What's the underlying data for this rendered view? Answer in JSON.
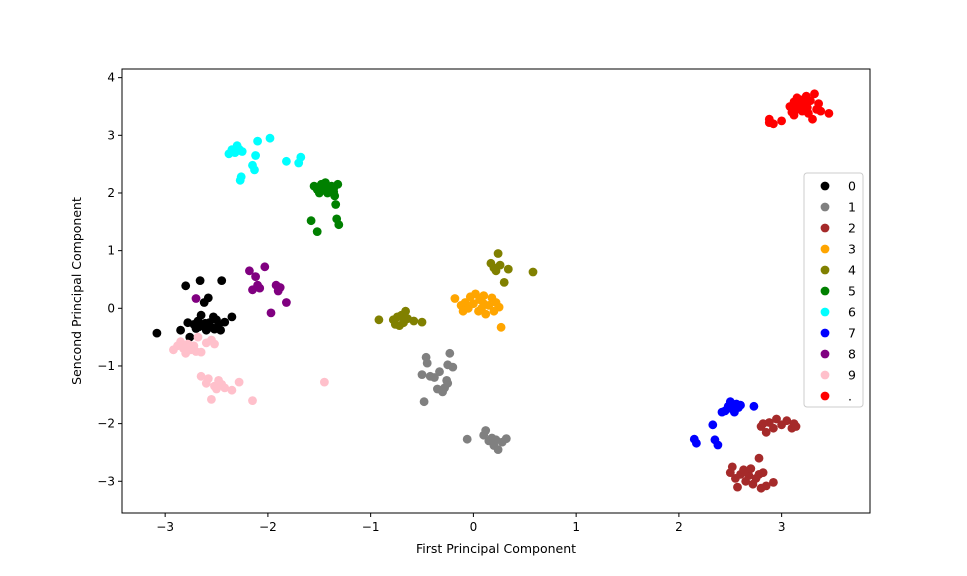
{
  "chart_data": {
    "type": "scatter",
    "title": "",
    "xlabel": "First Principal Component",
    "ylabel": "Sencond Principal Component",
    "xlim": [
      -3.42,
      3.86
    ],
    "ylim": [
      -3.55,
      4.15
    ],
    "xticks": [
      -3,
      -2,
      -1,
      0,
      1,
      2,
      3
    ],
    "yticks": [
      -3,
      -2,
      -1,
      0,
      1,
      2,
      3,
      4
    ],
    "xtick_labels": [
      "−3",
      "−2",
      "−1",
      "0",
      "1",
      "2",
      "3"
    ],
    "ytick_labels": [
      "−3",
      "−2",
      "−1",
      "0",
      "1",
      "2",
      "3",
      "4"
    ],
    "grid": false,
    "legend_position": "center-right",
    "series": [
      {
        "name": "0",
        "color": "#000000",
        "points": [
          [
            -3.08,
            -0.43
          ],
          [
            -2.85,
            -0.38
          ],
          [
            -2.8,
            0.39
          ],
          [
            -2.78,
            -0.25
          ],
          [
            -2.76,
            -0.5
          ],
          [
            -2.72,
            -0.28
          ],
          [
            -2.7,
            -0.35
          ],
          [
            -2.68,
            -0.22
          ],
          [
            -2.66,
            0.48
          ],
          [
            -2.65,
            -0.12
          ],
          [
            -2.63,
            -0.3
          ],
          [
            -2.62,
            0.1
          ],
          [
            -2.6,
            -0.38
          ],
          [
            -2.58,
            0.18
          ],
          [
            -2.57,
            -0.25
          ],
          [
            -2.55,
            -0.33
          ],
          [
            -2.53,
            -0.15
          ],
          [
            -2.5,
            -0.2
          ],
          [
            -2.48,
            -0.28
          ],
          [
            -2.46,
            -0.38
          ],
          [
            -2.45,
            0.48
          ],
          [
            -2.42,
            -0.24
          ],
          [
            -2.35,
            -0.15
          ],
          [
            -2.67,
            -0.32
          ],
          [
            -2.52,
            -0.36
          ],
          [
            -2.61,
            -0.26
          ]
        ]
      },
      {
        "name": "1",
        "color": "#808080",
        "points": [
          [
            -0.48,
            -1.62
          ],
          [
            -0.5,
            -1.15
          ],
          [
            -0.46,
            -0.85
          ],
          [
            -0.45,
            -0.95
          ],
          [
            -0.42,
            -1.18
          ],
          [
            -0.38,
            -1.2
          ],
          [
            -0.35,
            -1.4
          ],
          [
            -0.33,
            -1.1
          ],
          [
            -0.3,
            -1.45
          ],
          [
            -0.28,
            -1.38
          ],
          [
            -0.26,
            -1.25
          ],
          [
            -0.25,
            -0.98
          ],
          [
            -0.23,
            -0.78
          ],
          [
            -0.2,
            -1.02
          ],
          [
            -0.25,
            -1.3
          ],
          [
            -0.06,
            -2.27
          ],
          [
            0.1,
            -2.2
          ],
          [
            0.12,
            -2.12
          ],
          [
            0.15,
            -2.3
          ],
          [
            0.18,
            -2.25
          ],
          [
            0.2,
            -2.38
          ],
          [
            0.22,
            -2.28
          ],
          [
            0.24,
            -2.45
          ],
          [
            0.28,
            -2.32
          ],
          [
            0.32,
            -2.26
          ]
        ]
      },
      {
        "name": "2",
        "color": "#a52a2a",
        "points": [
          [
            2.5,
            -2.85
          ],
          [
            2.52,
            -2.75
          ],
          [
            2.55,
            -2.95
          ],
          [
            2.57,
            -3.1
          ],
          [
            2.6,
            -2.88
          ],
          [
            2.63,
            -2.8
          ],
          [
            2.65,
            -3.0
          ],
          [
            2.68,
            -2.9
          ],
          [
            2.7,
            -2.78
          ],
          [
            2.72,
            -3.05
          ],
          [
            2.75,
            -2.95
          ],
          [
            2.78,
            -2.88
          ],
          [
            2.8,
            -3.12
          ],
          [
            2.82,
            -2.85
          ],
          [
            2.85,
            -3.08
          ],
          [
            2.92,
            -3.02
          ],
          [
            2.78,
            -2.6
          ],
          [
            2.8,
            -2.05
          ],
          [
            2.82,
            -2.0
          ],
          [
            2.85,
            -2.15
          ],
          [
            2.88,
            -1.98
          ],
          [
            2.92,
            -2.08
          ],
          [
            2.95,
            -1.92
          ],
          [
            3.0,
            -2.02
          ],
          [
            3.05,
            -1.95
          ],
          [
            3.1,
            -2.08
          ],
          [
            3.12,
            -2.0
          ],
          [
            3.14,
            -2.05
          ]
        ]
      },
      {
        "name": "3",
        "color": "#ffa500",
        "points": [
          [
            -0.18,
            0.17
          ],
          [
            -0.12,
            0.05
          ],
          [
            -0.1,
            -0.05
          ],
          [
            -0.08,
            0.1
          ],
          [
            -0.05,
            0.0
          ],
          [
            -0.03,
            0.2
          ],
          [
            0.0,
            0.08
          ],
          [
            0.02,
            0.25
          ],
          [
            0.05,
            -0.05
          ],
          [
            0.06,
            0.15
          ],
          [
            0.08,
            0.0
          ],
          [
            0.1,
            0.22
          ],
          [
            0.12,
            -0.1
          ],
          [
            0.15,
            0.05
          ],
          [
            0.18,
            0.18
          ],
          [
            0.2,
            -0.05
          ],
          [
            0.22,
            0.1
          ],
          [
            0.25,
            0.02
          ],
          [
            0.27,
            -0.33
          ],
          [
            0.1,
            0.08
          ]
        ]
      },
      {
        "name": "4",
        "color": "#808000",
        "points": [
          [
            -0.92,
            -0.2
          ],
          [
            -0.78,
            -0.2
          ],
          [
            -0.76,
            -0.28
          ],
          [
            -0.74,
            -0.15
          ],
          [
            -0.72,
            -0.3
          ],
          [
            -0.7,
            -0.12
          ],
          [
            -0.68,
            -0.25
          ],
          [
            -0.66,
            -0.05
          ],
          [
            -0.64,
            -0.18
          ],
          [
            -0.58,
            -0.22
          ],
          [
            -0.5,
            -0.24
          ],
          [
            0.17,
            0.78
          ],
          [
            0.2,
            0.7
          ],
          [
            0.22,
            0.65
          ],
          [
            0.24,
            0.95
          ],
          [
            0.26,
            0.75
          ],
          [
            0.3,
            0.45
          ],
          [
            0.34,
            0.68
          ],
          [
            0.58,
            0.63
          ]
        ]
      },
      {
        "name": "5",
        "color": "#008000",
        "points": [
          [
            -1.58,
            1.52
          ],
          [
            -1.52,
            1.33
          ],
          [
            -1.55,
            2.12
          ],
          [
            -1.52,
            2.06
          ],
          [
            -1.5,
            2.0
          ],
          [
            -1.48,
            2.15
          ],
          [
            -1.46,
            2.08
          ],
          [
            -1.44,
            2.18
          ],
          [
            -1.42,
            2.1
          ],
          [
            -1.4,
            2.05
          ],
          [
            -1.38,
            2.12
          ],
          [
            -1.36,
            2.08
          ],
          [
            -1.35,
            1.95
          ],
          [
            -1.34,
            1.8
          ],
          [
            -1.33,
            1.55
          ],
          [
            -1.32,
            2.15
          ],
          [
            -1.31,
            1.45
          ],
          [
            -1.42,
            2.0
          ],
          [
            -1.36,
            2.02
          ]
        ]
      },
      {
        "name": "6",
        "color": "#00ffff",
        "points": [
          [
            -2.38,
            2.68
          ],
          [
            -2.35,
            2.75
          ],
          [
            -2.32,
            2.7
          ],
          [
            -2.3,
            2.82
          ],
          [
            -2.28,
            2.76
          ],
          [
            -2.27,
            2.22
          ],
          [
            -2.26,
            2.28
          ],
          [
            -2.15,
            2.48
          ],
          [
            -2.13,
            2.4
          ],
          [
            -2.12,
            2.65
          ],
          [
            -2.1,
            2.9
          ],
          [
            -1.98,
            2.95
          ],
          [
            -1.82,
            2.55
          ],
          [
            -1.7,
            2.52
          ],
          [
            -1.68,
            2.62
          ],
          [
            -2.25,
            2.72
          ]
        ]
      },
      {
        "name": "7",
        "color": "#0000ff",
        "points": [
          [
            2.15,
            -2.27
          ],
          [
            2.17,
            -2.34
          ],
          [
            2.33,
            -2.02
          ],
          [
            2.35,
            -2.28
          ],
          [
            2.38,
            -2.37
          ],
          [
            2.42,
            -1.8
          ],
          [
            2.45,
            -1.78
          ],
          [
            2.48,
            -1.7
          ],
          [
            2.5,
            -1.62
          ],
          [
            2.52,
            -1.75
          ],
          [
            2.54,
            -1.8
          ],
          [
            2.56,
            -1.66
          ],
          [
            2.58,
            -1.72
          ],
          [
            2.6,
            -1.68
          ],
          [
            2.73,
            -1.7
          ]
        ]
      },
      {
        "name": "8",
        "color": "#800080",
        "points": [
          [
            -2.7,
            0.17
          ],
          [
            -2.18,
            0.65
          ],
          [
            -2.15,
            0.32
          ],
          [
            -2.12,
            0.55
          ],
          [
            -2.1,
            0.4
          ],
          [
            -2.08,
            0.35
          ],
          [
            -2.03,
            0.72
          ],
          [
            -1.97,
            -0.08
          ],
          [
            -1.92,
            0.4
          ],
          [
            -1.9,
            0.3
          ],
          [
            -1.88,
            0.36
          ],
          [
            -1.82,
            0.1
          ]
        ]
      },
      {
        "name": "9",
        "color": "#ffc0cb",
        "points": [
          [
            -2.92,
            -0.72
          ],
          [
            -2.88,
            -0.65
          ],
          [
            -2.85,
            -0.58
          ],
          [
            -2.82,
            -0.7
          ],
          [
            -2.8,
            -0.78
          ],
          [
            -2.78,
            -0.62
          ],
          [
            -2.75,
            -0.72
          ],
          [
            -2.72,
            -0.65
          ],
          [
            -2.7,
            -0.75
          ],
          [
            -2.68,
            -0.5
          ],
          [
            -2.65,
            -0.76
          ],
          [
            -2.6,
            -0.6
          ],
          [
            -2.55,
            -0.55
          ],
          [
            -2.52,
            -0.62
          ],
          [
            -2.65,
            -1.18
          ],
          [
            -2.6,
            -1.3
          ],
          [
            -2.58,
            -1.22
          ],
          [
            -2.55,
            -1.58
          ],
          [
            -2.52,
            -1.35
          ],
          [
            -2.5,
            -1.4
          ],
          [
            -2.48,
            -1.25
          ],
          [
            -2.45,
            -1.32
          ],
          [
            -2.42,
            -1.38
          ],
          [
            -2.35,
            -1.42
          ],
          [
            -2.28,
            -1.28
          ],
          [
            -2.15,
            -1.6
          ],
          [
            -1.45,
            -1.28
          ]
        ]
      },
      {
        "name": ".",
        "color": "#ff0000",
        "points": [
          [
            2.88,
            3.22
          ],
          [
            2.88,
            3.28
          ],
          [
            2.92,
            3.2
          ],
          [
            3.0,
            3.25
          ],
          [
            3.08,
            3.5
          ],
          [
            3.1,
            3.4
          ],
          [
            3.12,
            3.58
          ],
          [
            3.14,
            3.45
          ],
          [
            3.15,
            3.65
          ],
          [
            3.16,
            3.52
          ],
          [
            3.18,
            3.62
          ],
          [
            3.2,
            3.42
          ],
          [
            3.22,
            3.55
          ],
          [
            3.24,
            3.68
          ],
          [
            3.25,
            3.48
          ],
          [
            3.26,
            3.38
          ],
          [
            3.28,
            3.6
          ],
          [
            3.3,
            3.28
          ],
          [
            3.32,
            3.72
          ],
          [
            3.34,
            3.45
          ],
          [
            3.36,
            3.55
          ],
          [
            3.38,
            3.42
          ],
          [
            3.46,
            3.38
          ],
          [
            3.12,
            3.35
          ],
          [
            3.2,
            3.52
          ]
        ]
      }
    ]
  }
}
